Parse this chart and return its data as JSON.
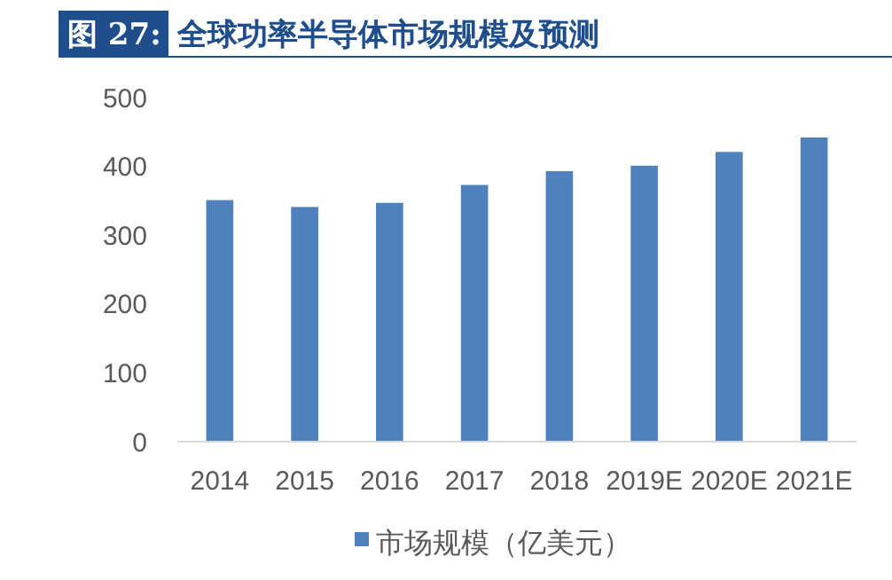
{
  "chart_data": {
    "type": "bar",
    "title": "图 27: 全球功率半导体市场规模及预测",
    "categories": [
      "2014",
      "2015",
      "2016",
      "2017",
      "2018",
      "2019E",
      "2020E",
      "2021E"
    ],
    "series": [
      {
        "name": "市场规模（亿美元）",
        "color": "#4f81bd",
        "values": [
          351,
          341,
          347,
          373,
          393,
          401,
          421,
          442
        ]
      }
    ],
    "ylim": [
      0,
      500
    ],
    "yticks": [
      0,
      100,
      200,
      300,
      400,
      500
    ],
    "grid": false,
    "legend": "bottom"
  }
}
